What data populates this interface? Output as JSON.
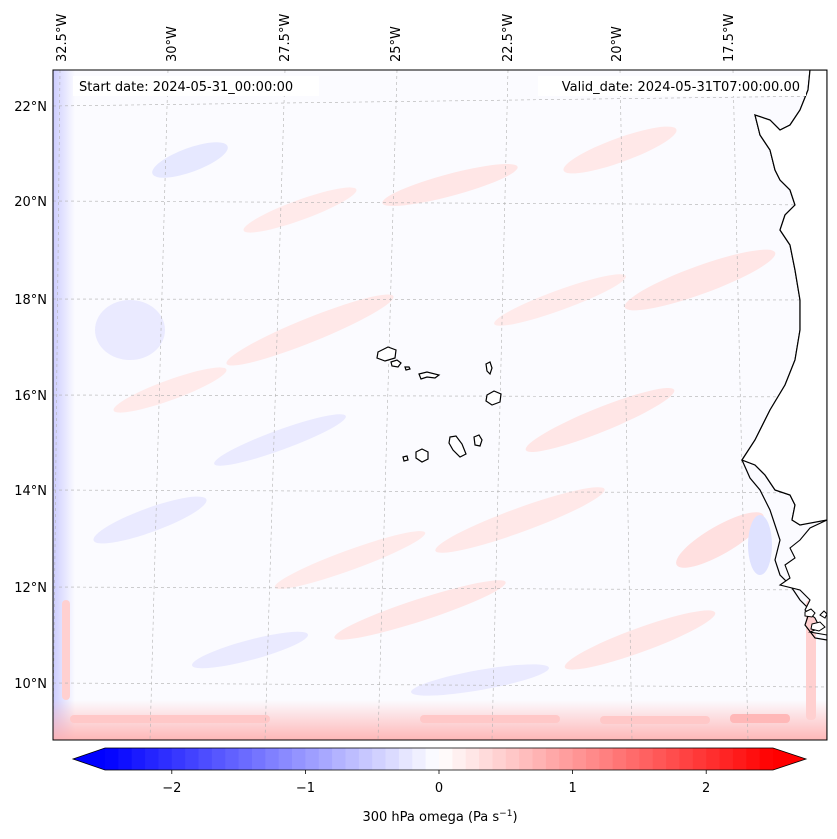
{
  "map": {
    "start_date": "Start date: 2024-05-31_00:00:00",
    "valid_date": "Valid_date: 2024-05-31T07:00:00.00",
    "lon_labels": [
      "32.5°W",
      "30°W",
      "27.5°W",
      "25°W",
      "22.5°W",
      "20°W",
      "17.5°W"
    ],
    "lat_labels": [
      "22°N",
      "20°N",
      "18°N",
      "16°N",
      "14°N",
      "12°N",
      "10°N"
    ],
    "land_color": "#ffffff",
    "coast_color": "#000000",
    "grid_color": "#b0b0b0"
  },
  "colorbar": {
    "label": "300 hPa omega (Pa s",
    "label_exp": "−1",
    "label_close": ")",
    "ticks": [
      "−2",
      "−1",
      "0",
      "1",
      "2"
    ],
    "tick_values": [
      -2,
      -1,
      0,
      1,
      2
    ],
    "range": [
      -2.5,
      2.5
    ],
    "low_color": "#0000ff",
    "mid_color": "#ffffff",
    "high_color": "#ff0000"
  }
}
